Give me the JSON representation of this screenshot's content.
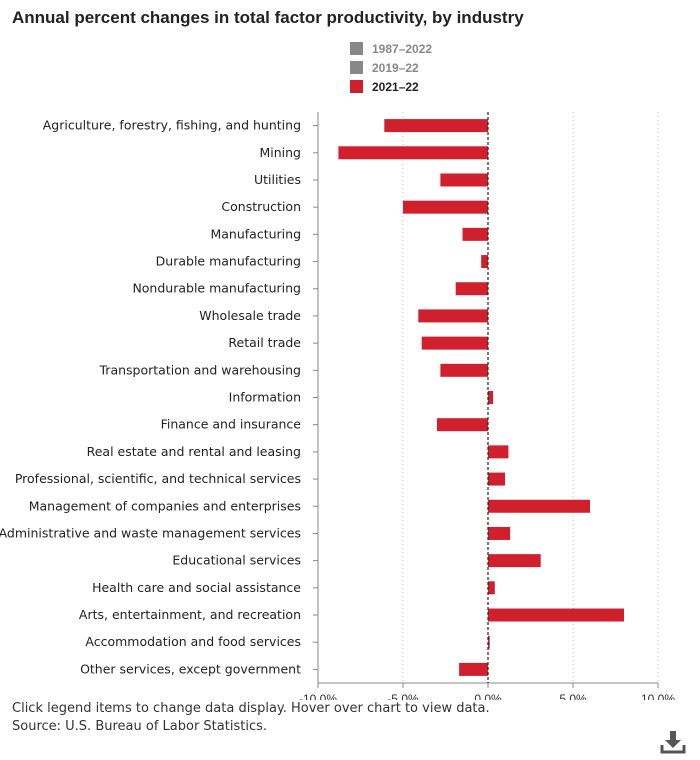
{
  "chart_data": {
    "type": "bar",
    "orientation": "horizontal",
    "title": "Annual percent changes in total factor productivity, by industry",
    "categories": [
      "Agriculture, forestry, fishing, and hunting",
      "Mining",
      "Utilities",
      "Construction",
      "Manufacturing",
      "Durable manufacturing",
      "Nondurable manufacturing",
      "Wholesale trade",
      "Retail trade",
      "Transportation and warehousing",
      "Information",
      "Finance and insurance",
      "Real estate and rental and leasing",
      "Professional, scientific, and technical services",
      "Management of companies and enterprises",
      "Administrative and waste management services",
      "Educational services",
      "Health care and social assistance",
      "Arts, entertainment, and recreation",
      "Accommodation and food services",
      "Other services, except government"
    ],
    "series": [
      {
        "name": "2021–22",
        "color": "#d0202e",
        "values": [
          -6.1,
          -8.8,
          -2.8,
          -5.0,
          -1.5,
          -0.4,
          -1.9,
          -4.1,
          -3.9,
          -2.8,
          0.3,
          -3.0,
          1.2,
          1.0,
          6.0,
          1.3,
          3.1,
          0.4,
          8.0,
          0.1,
          -1.7
        ]
      }
    ],
    "xlim": [
      -10,
      10
    ],
    "xticks": [
      "-10.0%",
      "-5.0%",
      "0.0%",
      "5.0%",
      "10.0%"
    ],
    "xtick_values": [
      -10,
      -5,
      0,
      5,
      10
    ],
    "grid": "vertical dotted",
    "xlabel": "",
    "ylabel": ""
  },
  "legend": [
    {
      "label": "1987–2022",
      "color": "#888888",
      "active": false
    },
    {
      "label": "2019–22",
      "color": "#888888",
      "active": false
    },
    {
      "label": "2021–22",
      "color": "#d0202e",
      "active": true
    }
  ],
  "footer": {
    "note": "Click legend items to change data display. Hover over chart to view data.",
    "source": "Source: U.S. Bureau of Labor Statistics."
  },
  "icons": {
    "download": "download-icon"
  }
}
